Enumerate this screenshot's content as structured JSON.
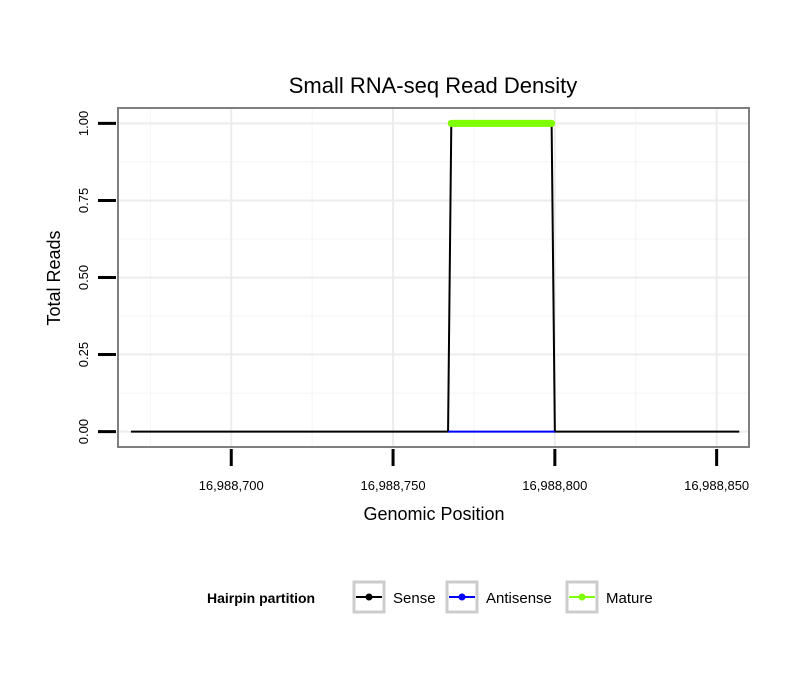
{
  "chart_data": {
    "type": "line",
    "title": "Small RNA-seq Read Density",
    "xlabel": "Genomic Position",
    "ylabel": "Total Reads",
    "xlim": [
      16988665,
      16988860
    ],
    "ylim": [
      -0.05,
      1.05
    ],
    "x_ticks": [
      16988700,
      16988750,
      16988800,
      16988850
    ],
    "x_tick_labels": [
      "16,988,700",
      "16,988,750",
      "16,988,800",
      "16,988,850"
    ],
    "y_ticks": [
      0,
      0.25,
      0.5,
      0.75,
      1
    ],
    "y_tick_labels": [
      "0.00",
      "0.25",
      "0.50",
      "0.75",
      "1.00"
    ],
    "grid": true,
    "legend": {
      "title": "Hairpin partition",
      "position": "bottom",
      "entries": [
        {
          "label": "Sense",
          "color": "#000000"
        },
        {
          "label": "Antisense",
          "color": "#0000ff"
        },
        {
          "label": "Mature",
          "color": "#80ff00"
        }
      ]
    },
    "series": [
      {
        "name": "Sense",
        "color": "#000000",
        "x": [
          16988669,
          16988767,
          16988768,
          16988799,
          16988800,
          16988857
        ],
        "y": [
          0,
          0,
          1,
          1,
          0,
          0
        ]
      },
      {
        "name": "Antisense",
        "color": "#0000ff",
        "x": [
          16988767,
          16988800
        ],
        "y": [
          0,
          0
        ]
      },
      {
        "name": "Mature",
        "color": "#80ff00",
        "x": [
          16988768,
          16988799
        ],
        "y": [
          1,
          1
        ]
      }
    ]
  }
}
